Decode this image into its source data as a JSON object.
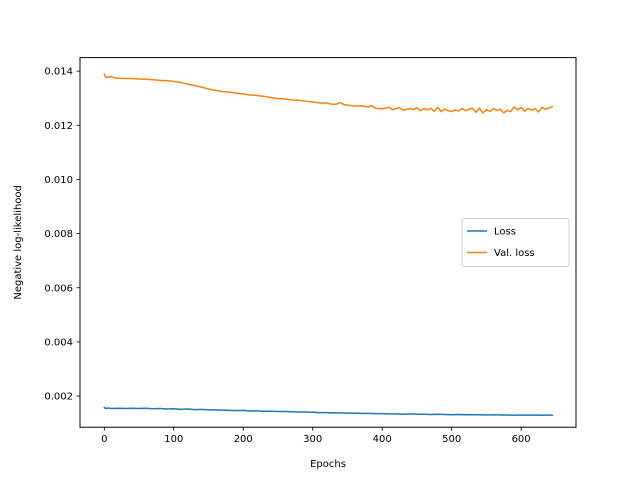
{
  "chart_data": {
    "type": "line",
    "title": "",
    "xlabel": "Epochs",
    "ylabel": "Negative log-likelihood",
    "xlim": [
      -35,
      679
    ],
    "ylim": [
      0.00085,
      0.0145
    ],
    "xticks": [
      0,
      100,
      200,
      300,
      400,
      500,
      600
    ],
    "xtick_labels": [
      "0",
      "100",
      "200",
      "300",
      "400",
      "500",
      "600"
    ],
    "yticks": [
      0.002,
      0.004,
      0.006,
      0.008,
      0.01,
      0.012,
      0.014
    ],
    "ytick_labels": [
      "0.002",
      "0.004",
      "0.006",
      "0.008",
      "0.010",
      "0.012",
      "0.014"
    ],
    "grid": false,
    "legend_position": "center-right",
    "series": [
      {
        "name": "Loss",
        "color": "#1f77b4",
        "x": [
          0,
          2,
          5,
          10,
          20,
          30,
          40,
          50,
          60,
          70,
          80,
          90,
          100,
          110,
          120,
          130,
          140,
          150,
          160,
          170,
          180,
          190,
          200,
          210,
          220,
          230,
          240,
          250,
          260,
          270,
          280,
          290,
          300,
          310,
          320,
          330,
          340,
          350,
          360,
          370,
          380,
          390,
          400,
          410,
          420,
          430,
          440,
          450,
          460,
          470,
          480,
          490,
          500,
          510,
          520,
          530,
          540,
          550,
          560,
          570,
          580,
          590,
          600,
          610,
          620,
          630,
          640,
          645
        ],
        "y": [
          0.00158,
          0.00154,
          0.00156,
          0.00154,
          0.00155,
          0.00154,
          0.00155,
          0.00154,
          0.00155,
          0.00153,
          0.00154,
          0.00152,
          0.00153,
          0.00151,
          0.00152,
          0.0015,
          0.00151,
          0.00149,
          0.00149,
          0.00148,
          0.00147,
          0.00146,
          0.00147,
          0.00145,
          0.00145,
          0.00144,
          0.00144,
          0.00143,
          0.00143,
          0.00142,
          0.00141,
          0.00141,
          0.0014,
          0.00139,
          0.00139,
          0.00138,
          0.00138,
          0.00137,
          0.00137,
          0.00136,
          0.00136,
          0.00135,
          0.00135,
          0.00134,
          0.00134,
          0.00133,
          0.00134,
          0.00133,
          0.00133,
          0.00132,
          0.00133,
          0.00132,
          0.00131,
          0.00132,
          0.00131,
          0.00131,
          0.00131,
          0.0013,
          0.00131,
          0.0013,
          0.0013,
          0.00129,
          0.0013,
          0.00129,
          0.0013,
          0.00129,
          0.0013,
          0.00129
        ]
      },
      {
        "name": "Val. loss",
        "color": "#ff7f0e",
        "x": [
          0,
          2,
          5,
          10,
          15,
          20,
          30,
          40,
          50,
          60,
          70,
          80,
          90,
          100,
          110,
          120,
          130,
          140,
          150,
          160,
          170,
          180,
          190,
          200,
          210,
          220,
          230,
          240,
          250,
          260,
          270,
          280,
          290,
          300,
          310,
          320,
          330,
          335,
          340,
          345,
          350,
          360,
          370,
          380,
          385,
          390,
          400,
          410,
          415,
          420,
          425,
          430,
          440,
          445,
          450,
          455,
          460,
          465,
          470,
          475,
          480,
          485,
          490,
          495,
          500,
          505,
          510,
          515,
          520,
          525,
          530,
          535,
          540,
          545,
          550,
          555,
          560,
          565,
          570,
          575,
          580,
          585,
          590,
          595,
          600,
          605,
          610,
          615,
          620,
          625,
          630,
          635,
          640,
          645
        ],
        "y": [
          0.01388,
          0.01377,
          0.01378,
          0.0138,
          0.01375,
          0.01374,
          0.01373,
          0.01373,
          0.01371,
          0.0137,
          0.01368,
          0.01366,
          0.01365,
          0.01362,
          0.01358,
          0.01352,
          0.01347,
          0.01341,
          0.01334,
          0.01329,
          0.01325,
          0.01322,
          0.01319,
          0.01316,
          0.01312,
          0.0131,
          0.01307,
          0.01302,
          0.01299,
          0.01297,
          0.01294,
          0.01292,
          0.01289,
          0.01286,
          0.01283,
          0.01282,
          0.01277,
          0.01279,
          0.01284,
          0.01276,
          0.01275,
          0.01271,
          0.01272,
          0.01268,
          0.01273,
          0.01263,
          0.01261,
          0.01266,
          0.01257,
          0.01262,
          0.01265,
          0.01256,
          0.01262,
          0.01258,
          0.01265,
          0.01254,
          0.01262,
          0.01257,
          0.01263,
          0.01252,
          0.01266,
          0.01251,
          0.0126,
          0.01254,
          0.01251,
          0.01257,
          0.01253,
          0.01262,
          0.01254,
          0.01259,
          0.01263,
          0.01248,
          0.01264,
          0.01245,
          0.01258,
          0.01251,
          0.01262,
          0.01255,
          0.0126,
          0.01246,
          0.01255,
          0.01251,
          0.01268,
          0.01257,
          0.01266,
          0.01252,
          0.01262,
          0.01256,
          0.01261,
          0.01249,
          0.01266,
          0.01259,
          0.01264,
          0.01269
        ]
      }
    ]
  }
}
